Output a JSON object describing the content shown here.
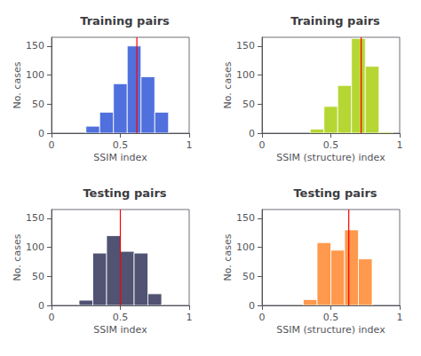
{
  "chart_data": [
    {
      "type": "histogram",
      "title": "Training pairs",
      "xlabel": "SSIM index",
      "ylabel": "No. cases",
      "bins": [
        0.25,
        0.35,
        0.45,
        0.55,
        0.65,
        0.75,
        0.85
      ],
      "values": [
        12,
        36,
        85,
        150,
        97,
        36
      ],
      "vline": {
        "x": 0.62,
        "color": "red"
      },
      "xlim": [
        0,
        1
      ],
      "ylim": [
        0,
        165
      ],
      "xticks": [
        0,
        0.5,
        1
      ],
      "yticks": [
        0,
        50,
        100,
        150
      ],
      "grid": false
    },
    {
      "type": "histogram",
      "title": "Training pairs",
      "xlabel": "SSIM (structure) index",
      "ylabel": "No. cases",
      "bins": [
        0.35,
        0.45,
        0.55,
        0.65,
        0.75,
        0.85,
        0.95
      ],
      "values": [
        7,
        46,
        82,
        163,
        115,
        2
      ],
      "vline": {
        "x": 0.72,
        "color": "red"
      },
      "xlim": [
        0,
        1
      ],
      "ylim": [
        0,
        165
      ],
      "xticks": [
        0,
        0.5,
        1
      ],
      "yticks": [
        0,
        50,
        100,
        150
      ],
      "grid": false
    },
    {
      "type": "histogram",
      "title": "Testing pairs",
      "xlabel": "SSIM index",
      "ylabel": "No. cases",
      "bins": [
        0.2,
        0.3,
        0.4,
        0.5,
        0.6,
        0.7,
        0.8
      ],
      "values": [
        9,
        90,
        120,
        93,
        90,
        20
      ],
      "vline": {
        "x": 0.5,
        "color": "red"
      },
      "xlim": [
        0,
        1
      ],
      "ylim": [
        0,
        165
      ],
      "xticks": [
        0,
        0.5,
        1
      ],
      "yticks": [
        0,
        50,
        100,
        150
      ],
      "grid": false
    },
    {
      "type": "histogram",
      "title": "Testing pairs",
      "xlabel": "SSIM (structure) index",
      "ylabel": "No. cases",
      "bins": [
        0.3,
        0.4,
        0.5,
        0.6,
        0.7,
        0.8
      ],
      "values": [
        10,
        108,
        95,
        130,
        80
      ],
      "vline": {
        "x": 0.63,
        "color": "red"
      },
      "xlim": [
        0,
        1
      ],
      "ylim": [
        0,
        165
      ],
      "xticks": [
        0,
        0.5,
        1
      ],
      "yticks": [
        0,
        50,
        100,
        150
      ],
      "grid": false
    }
  ]
}
